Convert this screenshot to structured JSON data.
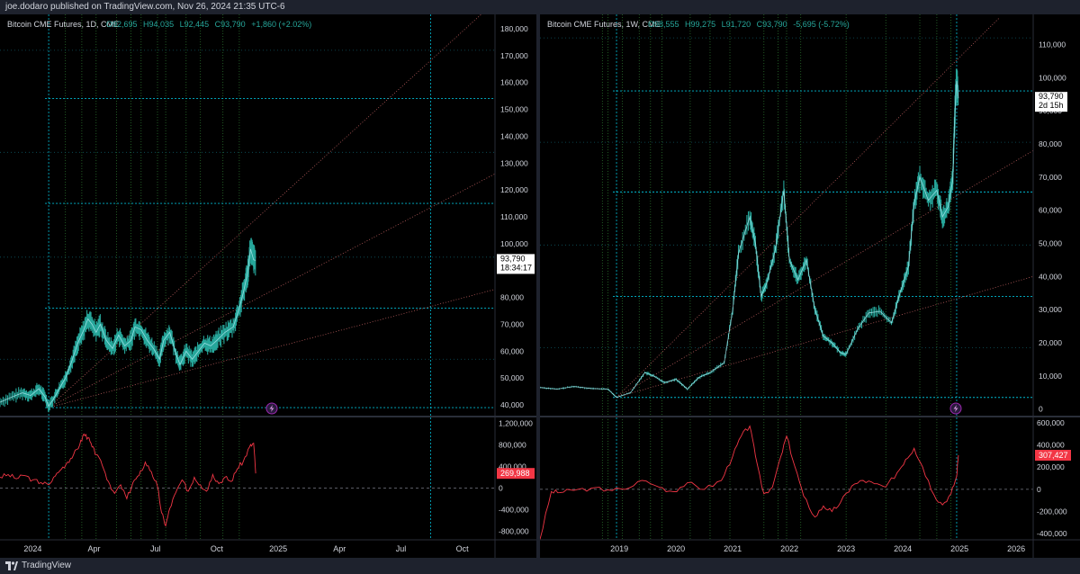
{
  "header": {
    "publisher": "joe.dodaro published on TradingView.com, Nov 26, 2024 21:35 UTC-6"
  },
  "footer": {
    "brand": "TradingView",
    "logo_icon": "tradingview-logo-icon"
  },
  "colors": {
    "candle": "#26a69a",
    "candle_light": "#b2ebf2",
    "grid": "#00bcd4",
    "green_vline": "#2e7d32",
    "fan": "#e57373",
    "osc": "#f23645",
    "price_label_bg": "#ffffff",
    "osc_label_bg": "#f23645"
  },
  "chart_data": [
    {
      "type": "candlestick",
      "title": "Bitcoin CME Futures, 1D, CME",
      "ohlc": {
        "open": "O92,695",
        "high": "H94,035",
        "low": "L92,445",
        "close": "C93,790",
        "change": "+1,860 (+2.02%)"
      },
      "x_labels": [
        "2024",
        "Apr",
        "Jul",
        "Oct",
        "2025",
        "Apr",
        "Jul",
        "Oct"
      ],
      "x_label_months": [
        0,
        3,
        6,
        9,
        12,
        15,
        18,
        21
      ],
      "x_range_months": [
        -1.6,
        22.6
      ],
      "y_ticks": [
        40000,
        50000,
        60000,
        70000,
        80000,
        90000,
        100000,
        110000,
        120000,
        130000,
        140000,
        150000,
        160000,
        170000,
        180000
      ],
      "y_tick_labels": [
        "40,000",
        "50,000",
        "60,000",
        "70,000",
        "80,000",
        "90,000",
        "100,000",
        "110,000",
        "120,000",
        "130,000",
        "140,000",
        "150,000",
        "160,000",
        "170,000",
        "180,000"
      ],
      "ylim": [
        36000,
        184000
      ],
      "last_price": 93790,
      "last_price_label": "93,790",
      "countdown": "18:34:17",
      "h_levels": [
        39000,
        76000,
        115000,
        154000
      ],
      "h_minor_levels": [
        57000,
        95000,
        134000,
        172000
      ],
      "v_lines_cyan": [
        0.78,
        19.45
      ],
      "v_lines_green": [
        1.6,
        2.4,
        3.1,
        4.1,
        4.8,
        5.3,
        6.1,
        6.5,
        7.5,
        8.2,
        9.3,
        10.1
      ],
      "fan_origin": {
        "month": 0.78,
        "price": 39000
      },
      "fan_lines_end": [
        {
          "month": 22.6,
          "price": 190000
        },
        {
          "month": 22.6,
          "price": 126000
        },
        {
          "month": 22.6,
          "price": 83000
        }
      ],
      "price_path": [
        [
          -1.6,
          41000
        ],
        [
          -1.0,
          43000
        ],
        [
          -0.5,
          44500
        ],
        [
          -0.1,
          43500
        ],
        [
          0.3,
          46000
        ],
        [
          0.6,
          43000
        ],
        [
          0.78,
          39500
        ],
        [
          1.0,
          42000
        ],
        [
          1.3,
          46000
        ],
        [
          1.6,
          50000
        ],
        [
          1.9,
          56000
        ],
        [
          2.2,
          63000
        ],
        [
          2.5,
          68000
        ],
        [
          2.7,
          72000
        ],
        [
          2.9,
          70000
        ],
        [
          3.1,
          67000
        ],
        [
          3.3,
          70000
        ],
        [
          3.6,
          64000
        ],
        [
          3.9,
          61000
        ],
        [
          4.2,
          66000
        ],
        [
          4.5,
          62000
        ],
        [
          4.8,
          64000
        ],
        [
          5.0,
          69000
        ],
        [
          5.3,
          68000
        ],
        [
          5.6,
          64000
        ],
        [
          5.9,
          61000
        ],
        [
          6.2,
          57000
        ],
        [
          6.4,
          64000
        ],
        [
          6.7,
          67000
        ],
        [
          7.0,
          59000
        ],
        [
          7.2,
          55000
        ],
        [
          7.5,
          60000
        ],
        [
          7.8,
          57000
        ],
        [
          8.1,
          60000
        ],
        [
          8.4,
          63000
        ],
        [
          8.7,
          62000
        ],
        [
          9.0,
          64000
        ],
        [
          9.4,
          67000
        ],
        [
          9.8,
          69000
        ],
        [
          10.1,
          76000
        ],
        [
          10.3,
          82000
        ],
        [
          10.5,
          89000
        ],
        [
          10.65,
          98000
        ],
        [
          10.8,
          94000
        ],
        [
          10.9,
          93790
        ]
      ],
      "oscillator": {
        "y_ticks": [
          -800000,
          -400000,
          0,
          400000,
          800000,
          1200000
        ],
        "y_tick_labels": [
          "-800,000",
          "-400,000",
          "0",
          "400,000",
          "800,000",
          "1,200,000"
        ],
        "ylim": [
          -960000,
          1290000
        ],
        "last_value": 269988,
        "last_label": "269,988",
        "path": [
          [
            -1.6,
            200000
          ],
          [
            -1.2,
            250000
          ],
          [
            -0.8,
            170000
          ],
          [
            -0.4,
            230000
          ],
          [
            0.0,
            150000
          ],
          [
            0.4,
            100000
          ],
          [
            0.78,
            60000
          ],
          [
            1.1,
            220000
          ],
          [
            1.4,
            350000
          ],
          [
            1.7,
            480000
          ],
          [
            2.0,
            620000
          ],
          [
            2.3,
            800000
          ],
          [
            2.5,
            1000000
          ],
          [
            2.7,
            930000
          ],
          [
            2.9,
            760000
          ],
          [
            3.1,
            620000
          ],
          [
            3.4,
            420000
          ],
          [
            3.7,
            120000
          ],
          [
            4.0,
            -100000
          ],
          [
            4.3,
            60000
          ],
          [
            4.6,
            -200000
          ],
          [
            4.9,
            100000
          ],
          [
            5.2,
            230000
          ],
          [
            5.5,
            480000
          ],
          [
            5.8,
            300000
          ],
          [
            6.1,
            30000
          ],
          [
            6.3,
            -460000
          ],
          [
            6.5,
            -700000
          ],
          [
            6.7,
            -380000
          ],
          [
            7.0,
            -80000
          ],
          [
            7.3,
            150000
          ],
          [
            7.6,
            -60000
          ],
          [
            7.9,
            200000
          ],
          [
            8.2,
            60000
          ],
          [
            8.5,
            -60000
          ],
          [
            8.8,
            250000
          ],
          [
            9.1,
            80000
          ],
          [
            9.4,
            200000
          ],
          [
            9.7,
            120000
          ],
          [
            10.0,
            350000
          ],
          [
            10.3,
            500000
          ],
          [
            10.6,
            760000
          ],
          [
            10.8,
            830000
          ],
          [
            10.9,
            269988
          ]
        ]
      }
    },
    {
      "type": "candlestick",
      "title": "Bitcoin CME Futures, 1W, CME",
      "ohlc": {
        "open": "O98,555",
        "high": "H99,275",
        "low": "L91,720",
        "close": "C93,790",
        "change": "-5,695 (-5.72%)"
      },
      "x_labels": [
        "2019",
        "2020",
        "2021",
        "2022",
        "2023",
        "2024",
        "2025",
        "2026"
      ],
      "x_label_years": [
        2019,
        2020,
        2021,
        2022,
        2023,
        2024,
        2025,
        2026
      ],
      "x_range_years": [
        2017.6,
        2026.3
      ],
      "y_ticks": [
        0,
        10000,
        20000,
        30000,
        40000,
        50000,
        60000,
        70000,
        80000,
        90000,
        100000,
        110000
      ],
      "y_tick_labels": [
        "0",
        "10,000",
        "20,000",
        "30,000",
        "40,000",
        "50,000",
        "60,000",
        "70,000",
        "80,000",
        "90,000",
        "100,000",
        "110,000"
      ],
      "ylim": [
        -2000,
        118000
      ],
      "last_price": 93790,
      "last_price_label": "93,790",
      "countdown": "2d 15h",
      "h_levels": [
        3500,
        34000,
        65500,
        96000
      ],
      "h_minor_levels": [
        18500,
        49500,
        80500,
        112000
      ],
      "v_lines_cyan": [
        2018.95,
        2024.95
      ],
      "v_lines_green": [
        2018.7,
        2018.8,
        2019.05,
        2019.35,
        2019.55,
        2019.75,
        2020.25,
        2020.6,
        2020.95,
        2021.55,
        2021.8,
        2021.95,
        2022.2,
        2023.0,
        2023.7,
        2024.3,
        2024.6,
        2024.85
      ],
      "fan_origin": {
        "year": 2018.95,
        "price": 3500
      },
      "fan_lines_end": [
        {
          "year": 2025.7,
          "price": 118000
        },
        {
          "year": 2026.3,
          "price": 78000
        },
        {
          "year": 2026.3,
          "price": 40000
        }
      ],
      "price_path": [
        [
          2017.6,
          6500
        ],
        [
          2017.9,
          6000
        ],
        [
          2018.2,
          6800
        ],
        [
          2018.5,
          6200
        ],
        [
          2018.8,
          6000
        ],
        [
          2018.95,
          3500
        ],
        [
          2019.2,
          5000
        ],
        [
          2019.45,
          11000
        ],
        [
          2019.6,
          10000
        ],
        [
          2019.8,
          8000
        ],
        [
          2020.0,
          9000
        ],
        [
          2020.2,
          6000
        ],
        [
          2020.4,
          9500
        ],
        [
          2020.6,
          11000
        ],
        [
          2020.85,
          14000
        ],
        [
          2021.0,
          30000
        ],
        [
          2021.1,
          47000
        ],
        [
          2021.3,
          58000
        ],
        [
          2021.4,
          50000
        ],
        [
          2021.5,
          34000
        ],
        [
          2021.6,
          38000
        ],
        [
          2021.75,
          48000
        ],
        [
          2021.9,
          66000
        ],
        [
          2022.0,
          45000
        ],
        [
          2022.15,
          39000
        ],
        [
          2022.3,
          45000
        ],
        [
          2022.45,
          30000
        ],
        [
          2022.6,
          22000
        ],
        [
          2022.75,
          20000
        ],
        [
          2022.9,
          17000
        ],
        [
          2023.0,
          16500
        ],
        [
          2023.2,
          24000
        ],
        [
          2023.4,
          29000
        ],
        [
          2023.6,
          29500
        ],
        [
          2023.8,
          26000
        ],
        [
          2023.95,
          35000
        ],
        [
          2024.1,
          43000
        ],
        [
          2024.2,
          62000
        ],
        [
          2024.3,
          70000
        ],
        [
          2024.45,
          63000
        ],
        [
          2024.6,
          66000
        ],
        [
          2024.7,
          58000
        ],
        [
          2024.8,
          61000
        ],
        [
          2024.88,
          69000
        ],
        [
          2024.92,
          90000
        ],
        [
          2024.95,
          99000
        ],
        [
          2024.98,
          93790
        ]
      ],
      "oscillator": {
        "y_ticks": [
          -400000,
          -200000,
          0,
          200000,
          400000,
          600000
        ],
        "y_tick_labels": [
          "-400,000",
          "-200,000",
          "0",
          "200,000",
          "400,000",
          "600,000"
        ],
        "ylim": [
          -455000,
          640000
        ],
        "last_value": 307427,
        "last_label": "307,427",
        "path": [
          [
            2017.6,
            -450000
          ],
          [
            2017.8,
            -20000
          ],
          [
            2017.95,
            -30000
          ],
          [
            2018.2,
            -10000
          ],
          [
            2018.5,
            10000
          ],
          [
            2018.8,
            -5000
          ],
          [
            2019.1,
            0
          ],
          [
            2019.4,
            80000
          ],
          [
            2019.7,
            20000
          ],
          [
            2019.95,
            -20000
          ],
          [
            2020.2,
            60000
          ],
          [
            2020.5,
            0
          ],
          [
            2020.8,
            80000
          ],
          [
            2021.0,
            300000
          ],
          [
            2021.15,
            480000
          ],
          [
            2021.3,
            570000
          ],
          [
            2021.4,
            300000
          ],
          [
            2021.55,
            -40000
          ],
          [
            2021.7,
            20000
          ],
          [
            2021.85,
            300000
          ],
          [
            2021.95,
            480000
          ],
          [
            2022.1,
            200000
          ],
          [
            2022.25,
            -60000
          ],
          [
            2022.45,
            -250000
          ],
          [
            2022.6,
            -150000
          ],
          [
            2022.75,
            -200000
          ],
          [
            2022.9,
            -120000
          ],
          [
            2023.1,
            30000
          ],
          [
            2023.3,
            80000
          ],
          [
            2023.5,
            50000
          ],
          [
            2023.7,
            20000
          ],
          [
            2023.9,
            150000
          ],
          [
            2024.05,
            270000
          ],
          [
            2024.2,
            370000
          ],
          [
            2024.35,
            200000
          ],
          [
            2024.55,
            -50000
          ],
          [
            2024.7,
            -140000
          ],
          [
            2024.85,
            -40000
          ],
          [
            2024.95,
            120000
          ],
          [
            2024.98,
            307427
          ]
        ]
      }
    }
  ]
}
